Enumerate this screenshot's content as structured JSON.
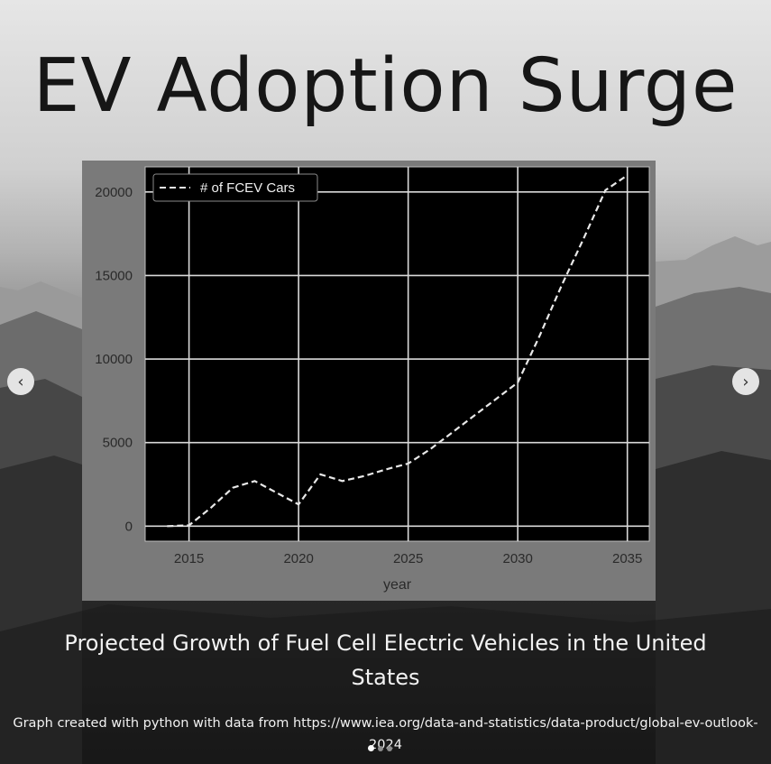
{
  "slide": {
    "title": "EV Adoption Surge",
    "subtitle": "Projected Growth of Fuel Cell Electric Vehicles in the United States",
    "source": "Graph created with python with data from https://www.iea.org/data-and-statistics/data-product/global-ev-outlook-2024"
  },
  "carousel": {
    "prev_icon": "chevron-left-icon",
    "next_icon": "chevron-right-icon",
    "dot_count": 3,
    "active_dot": 1
  },
  "colors": {
    "plot_background": "#000000",
    "panel_background": "#7a7a7a",
    "grid": "#d9d9d9",
    "line": "#e8e8e8",
    "title_text": "#161616"
  },
  "chart_data": {
    "type": "line",
    "title": "",
    "xlabel": "year",
    "ylabel": "",
    "xlim": [
      2013,
      2036
    ],
    "ylim": [
      -900,
      21500
    ],
    "x_ticks": [
      2015,
      2020,
      2025,
      2030,
      2035
    ],
    "y_ticks": [
      0,
      5000,
      10000,
      15000,
      20000
    ],
    "grid": true,
    "legend_position": "top-left",
    "series": [
      {
        "name": "# of FCEV Cars",
        "line_style": "dashed",
        "x": [
          2014,
          2015,
          2016,
          2017,
          2018,
          2019,
          2020,
          2021,
          2022,
          2023,
          2024,
          2025,
          2026,
          2027,
          2028,
          2029,
          2030,
          2031,
          2032,
          2033,
          2034,
          2035
        ],
        "values": [
          0,
          50,
          1100,
          2300,
          2700,
          2000,
          1300,
          3100,
          2700,
          3000,
          3400,
          3750,
          4600,
          5600,
          6600,
          7600,
          8600,
          11400,
          14400,
          17200,
          20100,
          21000
        ]
      }
    ]
  }
}
